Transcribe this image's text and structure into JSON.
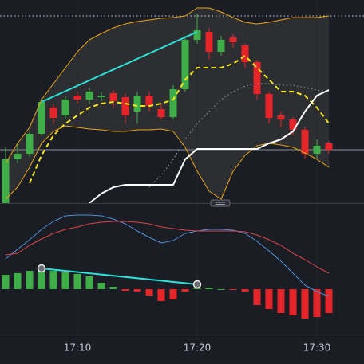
{
  "chart_data": [
    {
      "type": "candlestick",
      "categories": [
        null,
        null,
        null,
        null,
        null,
        null,
        "17:10",
        null,
        null,
        null,
        null,
        null,
        null,
        null,
        null,
        null,
        "17:20",
        null,
        null,
        null,
        null,
        null,
        null,
        null,
        null,
        null,
        "17:30",
        null
      ],
      "open": [
        0,
        55,
        62,
        87,
        120,
        110,
        135,
        130,
        133,
        138,
        133,
        115,
        135,
        118,
        108,
        143,
        205,
        215,
        190,
        208,
        198,
        177,
        137,
        110,
        105,
        92,
        62,
        75
      ],
      "close": [
        55,
        62,
        87,
        127,
        107,
        130,
        130,
        140,
        135,
        128,
        110,
        135,
        122,
        108,
        143,
        205,
        217,
        190,
        205,
        202,
        177,
        137,
        107,
        105,
        92,
        62,
        72,
        67
      ],
      "high": [
        70,
        75,
        90,
        132,
        125,
        135,
        140,
        145,
        140,
        142,
        138,
        140,
        140,
        125,
        148,
        210,
        238,
        220,
        210,
        212,
        200,
        180,
        140,
        115,
        108,
        95,
        80,
        78
      ],
      "low": [
        0,
        50,
        58,
        85,
        100,
        105,
        125,
        125,
        128,
        120,
        100,
        100,
        115,
        105,
        105,
        140,
        200,
        180,
        185,
        195,
        170,
        130,
        100,
        95,
        85,
        55,
        55,
        62
      ],
      "up_color": "#3fae49",
      "down_color": "#e5252a",
      "ylim": [
        0,
        255
      ],
      "band_fill": "#2c2e31",
      "lines": [
        {
          "color": "#e8a317",
          "style": "solid",
          "width": 1,
          "values": [
            50,
            75,
            95,
            130,
            150,
            170,
            190,
            205,
            213,
            220,
            225,
            228,
            230,
            232,
            233,
            235,
            245,
            245,
            240,
            233,
            227,
            225,
            227,
            230,
            233,
            233,
            233,
            235
          ]
        },
        {
          "color": "#e8a317",
          "style": "solid",
          "width": 1,
          "values": [
            5,
            20,
            45,
            75,
            90,
            97,
            95,
            93,
            92,
            90,
            90,
            92,
            92,
            93,
            90,
            70,
            40,
            15,
            5,
            40,
            60,
            72,
            75,
            73,
            70,
            63,
            55,
            45
          ]
        },
        {
          "color": "#f5e61b",
          "style": "dashed",
          "width": 2,
          "values": [
            null,
            null,
            25,
            60,
            85,
            100,
            110,
            120,
            125,
            127,
            125,
            122,
            122,
            125,
            130,
            155,
            170,
            170,
            170,
            175,
            185,
            170,
            155,
            140,
            140,
            135,
            120,
            100
          ]
        },
        {
          "color": "#9aa0a8",
          "style": "dotted",
          "width": 1,
          "values": [
            null,
            null,
            null,
            null,
            null,
            null,
            null,
            null,
            null,
            null,
            null,
            null,
            20,
            35,
            55,
            80,
            100,
            115,
            130,
            140,
            147,
            150,
            150,
            148,
            148,
            145,
            142,
            140
          ]
        },
        {
          "color": "#ffffff",
          "style": "solid",
          "width": 2,
          "values": [
            null,
            null,
            null,
            null,
            null,
            null,
            null,
            0,
            12,
            20,
            23,
            23,
            23,
            23,
            23,
            55,
            68,
            68,
            68,
            68,
            68,
            68,
            75,
            80,
            90,
            115,
            135,
            142
          ]
        }
      ],
      "trendline": {
        "color": "#2de0d8",
        "x": [
          3,
          16
        ],
        "values": [
          127,
          215
        ]
      },
      "hlines": [
        {
          "value": 235,
          "style": "dashed",
          "color": "#c8ccd4"
        },
        {
          "value": 67,
          "style": "solid",
          "color": "#8a8f98"
        }
      ]
    },
    {
      "type": "macd",
      "ylim": [
        -57,
        105
      ],
      "histogram": [
        18,
        20,
        23,
        26,
        23,
        21,
        19,
        16,
        8,
        3,
        -2,
        -3,
        -8,
        -15,
        -13,
        -3,
        2,
        2,
        0,
        -1,
        -3,
        -20,
        -25,
        -30,
        -33,
        -37,
        -35,
        -30
      ],
      "up_color": "#3fae49",
      "down_color": "#e5252a",
      "lines": [
        {
          "color": "#4f8fd8",
          "style": "solid",
          "width": 1,
          "values": [
            38,
            50,
            62,
            75,
            85,
            92,
            93,
            93,
            92,
            88,
            82,
            73,
            65,
            58,
            61,
            70,
            73,
            75,
            75,
            74,
            70,
            60,
            48,
            35,
            20,
            5,
            -3,
            -9
          ]
        },
        {
          "color": "#d9444a",
          "style": "solid",
          "width": 1,
          "values": [
            43,
            45,
            55,
            63,
            70,
            75,
            78,
            82,
            84,
            85,
            85,
            84,
            82,
            78,
            76,
            74,
            73,
            73,
            73,
            73,
            72,
            68,
            62,
            55,
            45,
            37,
            28,
            20
          ]
        }
      ],
      "trendline": {
        "color": "#2de0d8",
        "x": [
          3,
          16
        ],
        "values": [
          26,
          6
        ]
      }
    }
  ]
}
